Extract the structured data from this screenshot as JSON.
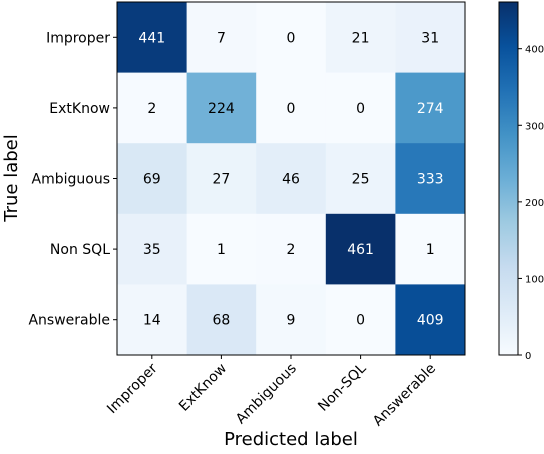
{
  "chart_data": {
    "type": "heatmap",
    "title": "",
    "xlabel": "Predicted label",
    "ylabel": "True label",
    "x_categories": [
      "Improper",
      "ExtKnow",
      "Ambiguous",
      "Non-SQL",
      "Answerable"
    ],
    "y_categories": [
      "Improper",
      "ExtKnow",
      "Ambiguous",
      "Non SQL",
      "Answerable"
    ],
    "values": [
      [
        441,
        7,
        0,
        21,
        31
      ],
      [
        2,
        224,
        0,
        0,
        274
      ],
      [
        69,
        27,
        46,
        25,
        333
      ],
      [
        35,
        1,
        2,
        461,
        1
      ],
      [
        14,
        68,
        9,
        0,
        409
      ]
    ],
    "colormap": "Blues",
    "colorbar": {
      "range": [
        0,
        461
      ],
      "ticks": [
        0,
        100,
        200,
        300,
        400
      ],
      "tick_labels": [
        "0",
        "100",
        "200",
        "300",
        "400"
      ]
    },
    "x_tick_rotation_deg": 45,
    "grid": false,
    "legend": "none"
  }
}
